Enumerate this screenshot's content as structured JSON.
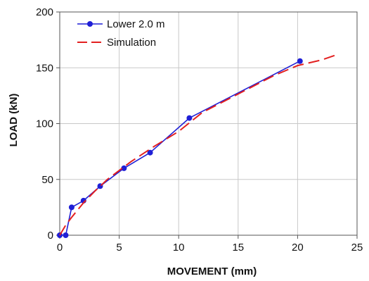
{
  "chart_data": {
    "type": "line",
    "xlabel": "MOVEMENT  (mm)",
    "ylabel": "LOAD  (kN)",
    "xlim": [
      0,
      25
    ],
    "ylim": [
      0,
      200
    ],
    "xticks": [
      0,
      5,
      10,
      15,
      20,
      25
    ],
    "yticks": [
      0,
      50,
      100,
      150,
      200
    ],
    "grid": true,
    "legend_position": "top-left",
    "series": [
      {
        "name": "Lower 2.0 m",
        "style": "solid-with-markers",
        "color": "#1f1fd6",
        "x": [
          0,
          0.5,
          1.0,
          2.0,
          3.4,
          5.4,
          7.6,
          10.9,
          20.2
        ],
        "y": [
          0,
          0,
          25,
          31,
          44,
          60,
          74,
          105,
          156
        ]
      },
      {
        "name": "Simulation",
        "style": "dashed",
        "color": "#e32020",
        "x": [
          0,
          0.5,
          1,
          2,
          3,
          4,
          5,
          6,
          8,
          10,
          12,
          14,
          16,
          18,
          20,
          22,
          23.1
        ],
        "y": [
          0,
          9,
          16,
          29,
          40,
          50,
          58,
          66,
          80,
          93,
          110,
          121,
          132,
          143,
          152,
          157,
          161
        ]
      }
    ]
  }
}
